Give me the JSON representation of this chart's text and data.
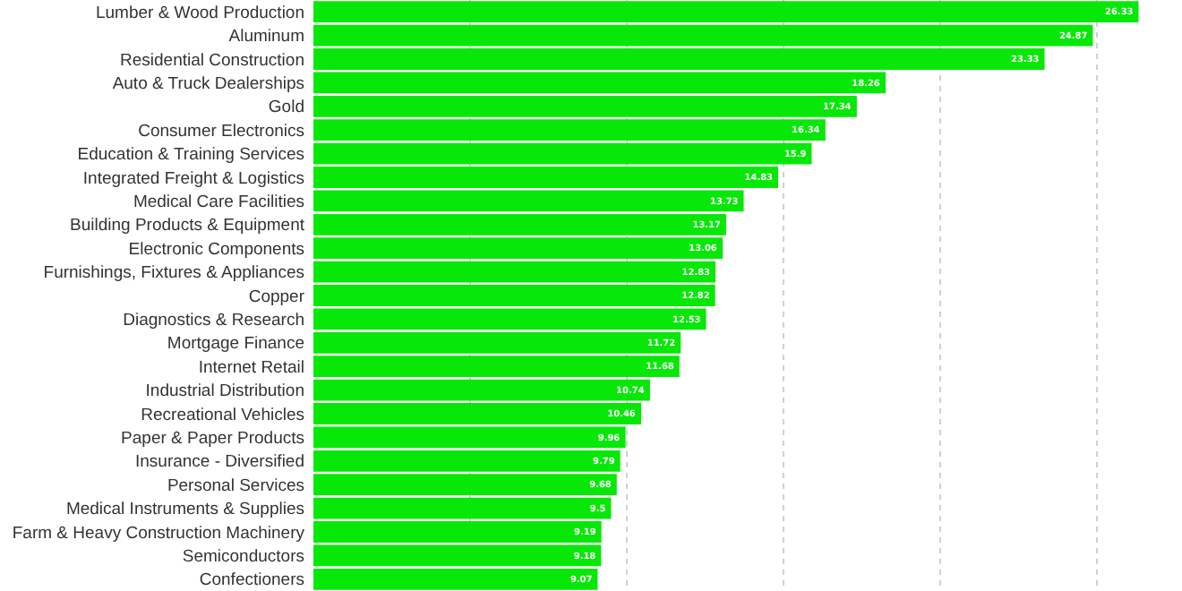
{
  "chart_data": {
    "type": "bar",
    "orientation": "horizontal",
    "categories": [
      "Lumber & Wood Production",
      "Aluminum",
      "Residential Construction",
      "Auto & Truck Dealerships",
      "Gold",
      "Consumer Electronics",
      "Education & Training Services",
      "Integrated Freight & Logistics",
      "Medical Care Facilities",
      "Building Products & Equipment",
      "Electronic Components",
      "Furnishings, Fixtures & Appliances",
      "Copper",
      "Diagnostics & Research",
      "Mortgage Finance",
      "Internet Retail",
      "Industrial Distribution",
      "Recreational Vehicles",
      "Paper & Paper Products",
      "Insurance - Diversified",
      "Personal Services",
      "Medical Instruments & Supplies",
      "Farm & Heavy Construction Machinery",
      "Semiconductors",
      "Confectioners"
    ],
    "values": [
      26.33,
      24.87,
      23.33,
      18.26,
      17.34,
      16.34,
      15.9,
      14.83,
      13.73,
      13.17,
      13.06,
      12.83,
      12.82,
      12.53,
      11.72,
      11.68,
      10.74,
      10.46,
      9.96,
      9.79,
      9.68,
      9.5,
      9.19,
      9.18,
      9.07
    ],
    "color": "#08e808",
    "data_labels": true,
    "grid": "x",
    "tick_labels": "y"
  }
}
